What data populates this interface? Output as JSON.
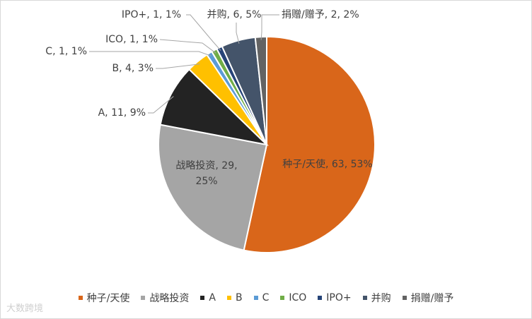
{
  "chart_data": {
    "type": "pie",
    "categories": [
      "种子/天使",
      "战略投资",
      "A",
      "B",
      "C",
      "ICO",
      "IPO+",
      "并购",
      "捐赠/赠予"
    ],
    "values": [
      63,
      29,
      11,
      4,
      1,
      1,
      1,
      6,
      2
    ],
    "value_labels": [
      "种子/天使, 63, 53%",
      "战略投资, 29, 25%",
      "A, 11, 9%",
      "B, 4, 3%",
      "C, 1, 1%",
      "ICO, 1, 1%",
      "IPO+, 1, 1%",
      "并购, 6, 5%",
      "捐赠/赠予, 2, 2%"
    ],
    "colors": [
      "#D9661A",
      "#A5A5A5",
      "#232323",
      "#FFC000",
      "#5B9BD5",
      "#70AD47",
      "#264478",
      "#44546A",
      "#636363"
    ],
    "legend": "bottom"
  },
  "watermark": "大数跨境"
}
